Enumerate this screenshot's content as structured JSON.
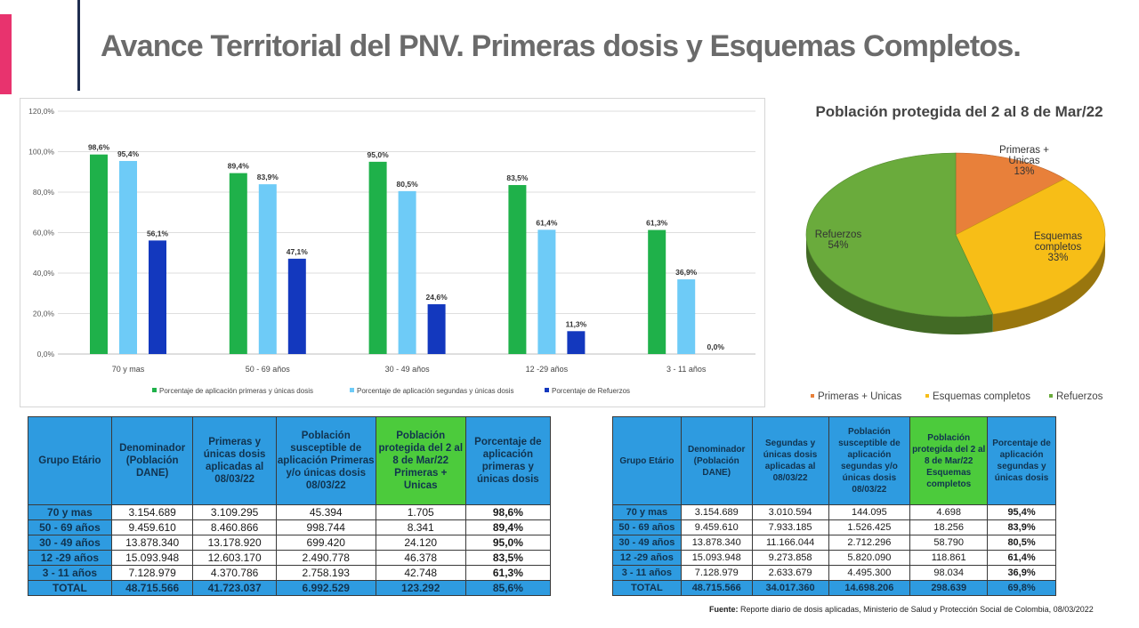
{
  "slide": {
    "title": "Avance Territorial del PNV. Primeras dosis y Esquemas Completos.",
    "accent_color": "#e8336e",
    "divider_color": "#1f2d4f"
  },
  "chart_data": [
    {
      "type": "bar",
      "categories": [
        "70  y mas",
        "50 - 69 años",
        "30 - 49 años",
        "12 -29 años",
        "3 - 11 años"
      ],
      "series": [
        {
          "name": "Porcentaje de aplicación primeras y únicas dosis",
          "color": "#1fb14a",
          "values": [
            98.6,
            89.4,
            95.0,
            83.5,
            61.3
          ],
          "labels": [
            "98,6%",
            "89,4%",
            "95,0%",
            "83,5%",
            "61,3%"
          ]
        },
        {
          "name": "Porcentaje de aplicación segundas y únicas dosis",
          "color": "#6ecbf7",
          "values": [
            95.4,
            83.9,
            80.5,
            61.4,
            36.9
          ],
          "labels": [
            "95,4%",
            "83,9%",
            "80,5%",
            "61,4%",
            "36,9%"
          ]
        },
        {
          "name": "Porcentaje de Refuerzos",
          "color": "#1338be",
          "values": [
            56.1,
            47.1,
            24.6,
            11.3,
            0.0
          ],
          "labels": [
            "56,1%",
            "47,1%",
            "24,6%",
            "11,3%",
            "0,0%"
          ]
        }
      ],
      "yticks": [
        "0,0%",
        "20,0%",
        "40,0%",
        "60,0%",
        "80,0%",
        "100,0%",
        "120,0%"
      ],
      "ylim": [
        0,
        120
      ],
      "grid": true,
      "legend_position": "bottom"
    },
    {
      "type": "pie",
      "title": "Población protegida del 2 al 8 de Mar/22",
      "slices": [
        {
          "name": "Primeras + Unicas",
          "label_lines": [
            "Primeras +",
            "Unicas"
          ],
          "value": 13,
          "pct_label": "13%",
          "color": "#e8803a"
        },
        {
          "name": "Esquemas completos",
          "label_lines": [
            "Esquemas",
            "completos"
          ],
          "value": 33,
          "pct_label": "33%",
          "color": "#f7be17"
        },
        {
          "name": "Refuerzos",
          "label_lines": [
            "Refuerzos"
          ],
          "value": 54,
          "pct_label": "54%",
          "color": "#6aab3c"
        }
      ],
      "legend_position": "bottom"
    }
  ],
  "table1": {
    "headers": [
      "Grupo Etário",
      "Denominador (Población DANE)",
      "Primeras y únicas dosis aplicadas al 08/03/22",
      "Población susceptible de aplicación Primeras y/o únicas dosis 08/03/22",
      "Población protegida del 2 al 8 de Mar/22 Primeras + Unicas",
      "Porcentaje de aplicación primeras y únicas dosis"
    ],
    "rows": [
      [
        "70  y mas",
        "3.154.689",
        "3.109.295",
        "45.394",
        "1.705",
        "98,6%"
      ],
      [
        "50 - 69 años",
        "9.459.610",
        "8.460.866",
        "998.744",
        "8.341",
        "89,4%"
      ],
      [
        "30 - 49 años",
        "13.878.340",
        "13.178.920",
        "699.420",
        "24.120",
        "95,0%"
      ],
      [
        "12 -29 años",
        "15.093.948",
        "12.603.170",
        "2.490.778",
        "46.378",
        "83,5%"
      ],
      [
        "3 - 11 años",
        "7.128.979",
        "4.370.786",
        "2.758.193",
        "42.748",
        "61,3%"
      ]
    ],
    "total": [
      "TOTAL",
      "48.715.566",
      "41.723.037",
      "6.992.529",
      "123.292",
      "85,6%"
    ]
  },
  "table2": {
    "headers": [
      "Grupo Etário",
      "Denominador (Población DANE)",
      "Segundas y únicas dosis aplicadas al 08/03/22",
      "Población susceptible de aplicación segundas y/o únicas dosis 08/03/22",
      "Población protegida del 2 al 8 de Mar/22 Esquemas completos",
      "Porcentaje de aplicación segundas y únicas dosis"
    ],
    "rows": [
      [
        "70  y mas",
        "3.154.689",
        "3.010.594",
        "144.095",
        "4.698",
        "95,4%"
      ],
      [
        "50 - 69 años",
        "9.459.610",
        "7.933.185",
        "1.526.425",
        "18.256",
        "83,9%"
      ],
      [
        "30 - 49 años",
        "13.878.340",
        "11.166.044",
        "2.712.296",
        "58.790",
        "80,5%"
      ],
      [
        "12 -29 años",
        "15.093.948",
        "9.273.858",
        "5.820.090",
        "118.861",
        "61,4%"
      ],
      [
        "3 - 11 años",
        "7.128.979",
        "2.633.679",
        "4.495.300",
        "98.034",
        "36,9%"
      ]
    ],
    "total": [
      "TOTAL",
      "48.715.566",
      "34.017.360",
      "14.698.206",
      "298.639",
      "69,8%"
    ]
  },
  "source": {
    "label": "Fuente:",
    "text": " Reporte diario de dosis aplicadas, Ministerio de Salud y Protección Social de Colombia, 08/03/2022"
  }
}
